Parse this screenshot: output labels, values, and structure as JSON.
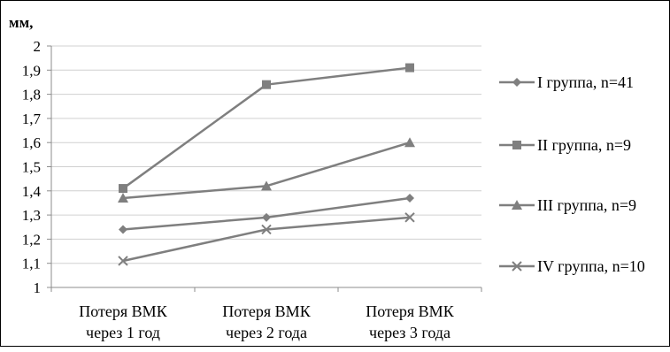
{
  "chart_data": {
    "type": "line",
    "ylabel": "мм,",
    "ylim": [
      1,
      2
    ],
    "ytick_step": 0.1,
    "yticks": [
      "1",
      "1,1",
      "1,2",
      "1,3",
      "1,4",
      "1,5",
      "1,6",
      "1,7",
      "1,8",
      "1,9",
      "2"
    ],
    "grid": true,
    "legend_position": "right",
    "categories": [
      [
        "Потеря ВМК",
        "через 1 год"
      ],
      [
        "Потеря ВМК",
        "через 2 года"
      ],
      [
        "Потеря ВМК",
        "через 3 года"
      ]
    ],
    "series": [
      {
        "name": "I группа, n=41",
        "marker": "diamond",
        "values": [
          1.24,
          1.29,
          1.37
        ]
      },
      {
        "name": "II группа, n=9",
        "marker": "square",
        "values": [
          1.41,
          1.84,
          1.91
        ]
      },
      {
        "name": "III группа, n=9",
        "marker": "triangle",
        "values": [
          1.37,
          1.42,
          1.6
        ]
      },
      {
        "name": "IV группа, n=10",
        "marker": "x",
        "values": [
          1.11,
          1.24,
          1.29
        ]
      }
    ],
    "colors": {
      "line": "#7f7f7f",
      "grid": "#d0d0d0",
      "axis": "#8c8c8c"
    }
  }
}
